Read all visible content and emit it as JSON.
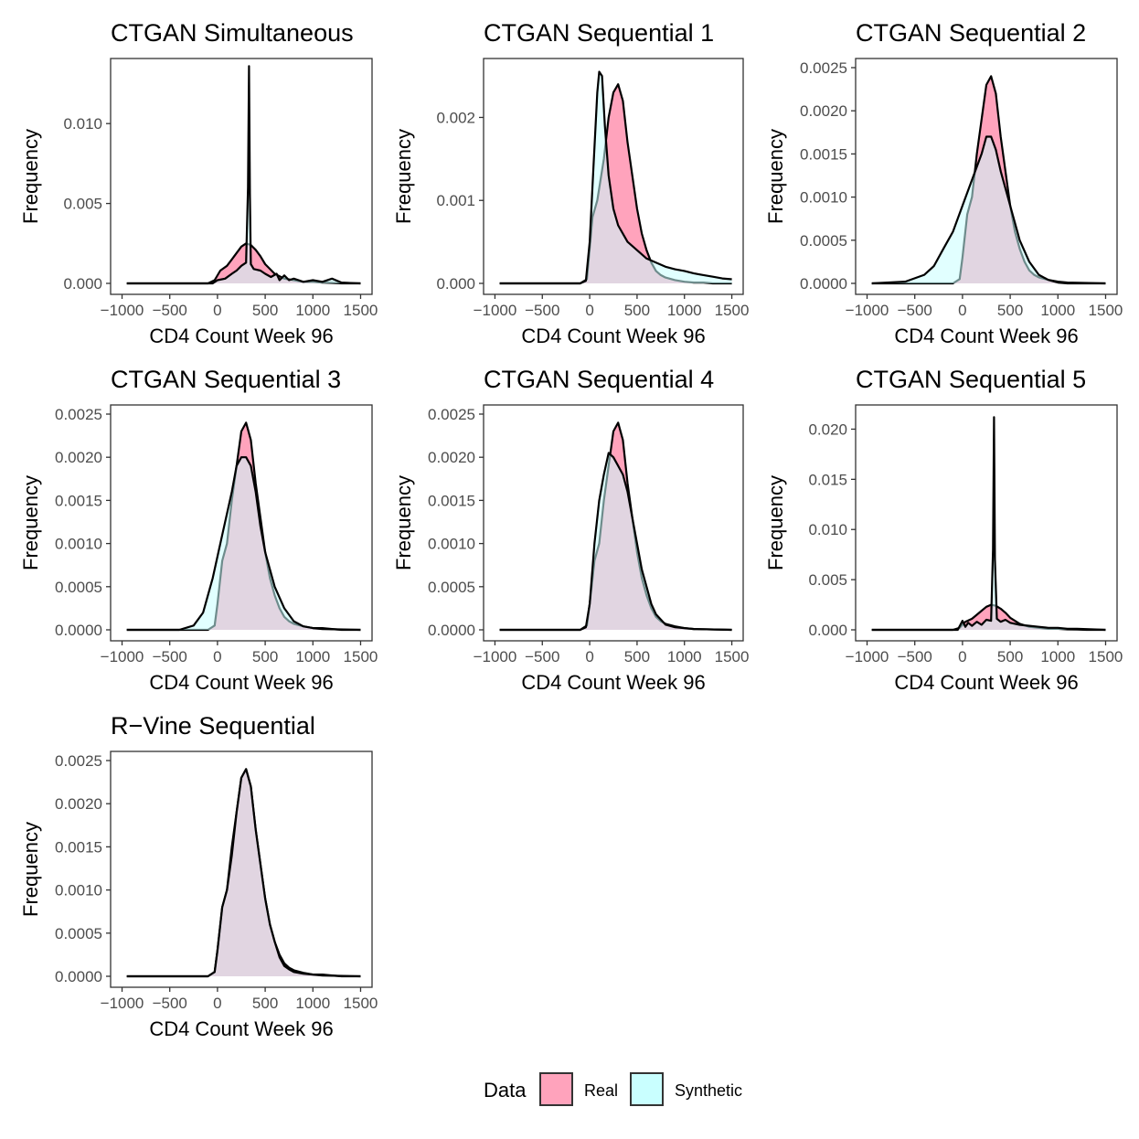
{
  "legend": {
    "title": "Data",
    "items": [
      {
        "label": "Real",
        "color": "#FFA3BC"
      },
      {
        "label": "Synthetic",
        "color": "#C9FFFF"
      }
    ]
  },
  "chart_data": [
    {
      "type": "area",
      "title": "CTGAN Simultaneous",
      "xlabel": "CD4 Count Week 96",
      "ylabel": "Frequency",
      "xlim": [
        -1000,
        1500
      ],
      "ylim": [
        0,
        0.0135
      ],
      "x_ticks": [
        "−1000",
        "−500",
        "0",
        "500",
        "1000",
        "1500"
      ],
      "y_ticks": [
        {
          "v": 0,
          "label": "0.000"
        },
        {
          "v": 0.005,
          "label": "0.005"
        },
        {
          "v": 0.01,
          "label": "0.010"
        }
      ],
      "series": [
        {
          "name": "Real",
          "x": [
            -950,
            -100,
            -30,
            30,
            100,
            150,
            200,
            250,
            300,
            350,
            400,
            450,
            500,
            600,
            700,
            800,
            900,
            1000,
            1100,
            1200,
            1300,
            1500
          ],
          "y": [
            0,
            0,
            0.0002,
            0.0008,
            0.0011,
            0.0015,
            0.0019,
            0.0023,
            0.0025,
            0.0024,
            0.0021,
            0.0017,
            0.0012,
            0.0006,
            0.0003,
            0.0002,
            0.0001,
            0.0001,
            5e-05,
            3e-05,
            0,
            0
          ]
        },
        {
          "name": "Synthetic",
          "x": [
            -950,
            -50,
            0,
            80,
            150,
            200,
            250,
            300,
            320,
            330,
            340,
            350,
            380,
            450,
            500,
            560,
            620,
            650,
            700,
            750,
            800,
            850,
            900,
            1000,
            1100,
            1200,
            1300,
            1500
          ],
          "y": [
            0,
            0,
            0.0002,
            0.0003,
            0.0006,
            0.0008,
            0.0011,
            0.0013,
            0.006,
            0.0136,
            0.0055,
            0.0012,
            0.0009,
            0.0008,
            0.0006,
            0.0004,
            0.0006,
            0.0002,
            0.0005,
            0.0002,
            0.0003,
            0.0002,
            0.0001,
            0.0002,
            0.0001,
            0.0003,
            5e-05,
            0
          ]
        }
      ]
    },
    {
      "type": "area",
      "title": "CTGAN Sequential 1",
      "xlabel": "CD4 Count Week 96",
      "ylabel": "Frequency",
      "xlim": [
        -1000,
        1500
      ],
      "ylim": [
        0,
        0.0026
      ],
      "x_ticks": [
        "−1000",
        "−500",
        "0",
        "500",
        "1000",
        "1500"
      ],
      "y_ticks": [
        {
          "v": 0,
          "label": "0.000"
        },
        {
          "v": 0.001,
          "label": "0.001"
        },
        {
          "v": 0.002,
          "label": "0.002"
        }
      ],
      "series": [
        {
          "name": "Real",
          "x": [
            -950,
            -100,
            -30,
            30,
            80,
            150,
            200,
            250,
            300,
            350,
            400,
            450,
            500,
            550,
            600,
            650,
            700,
            750,
            800,
            900,
            1000,
            1100,
            1200,
            1300,
            1500
          ],
          "y": [
            0,
            0,
            5e-05,
            0.0008,
            0.001,
            0.0015,
            0.002,
            0.0023,
            0.0024,
            0.0022,
            0.0017,
            0.0013,
            0.0009,
            0.0006,
            0.0004,
            0.00025,
            0.00015,
            0.0001,
            7e-05,
            4e-05,
            2e-05,
            1e-05,
            1e-05,
            0,
            0
          ]
        },
        {
          "name": "Synthetic",
          "x": [
            -950,
            -100,
            -40,
            0,
            40,
            80,
            100,
            130,
            160,
            200,
            250,
            300,
            400,
            500,
            600,
            700,
            800,
            900,
            1000,
            1100,
            1200,
            1300,
            1400,
            1500
          ],
          "y": [
            0,
            0,
            3e-05,
            0.0005,
            0.0014,
            0.0023,
            0.00255,
            0.0025,
            0.0019,
            0.0013,
            0.0009,
            0.0007,
            0.0005,
            0.0004,
            0.0003,
            0.00025,
            0.0002,
            0.00017,
            0.00015,
            0.00012,
            0.0001,
            8e-05,
            6e-05,
            5e-05
          ]
        }
      ]
    },
    {
      "type": "area",
      "title": "CTGAN Sequential 2",
      "xlabel": "CD4 Count Week 96",
      "ylabel": "Frequency",
      "xlim": [
        -1000,
        1500
      ],
      "ylim": [
        0,
        0.0025
      ],
      "x_ticks": [
        "−1000",
        "−500",
        "0",
        "500",
        "1000",
        "1500"
      ],
      "y_ticks": [
        {
          "v": 0,
          "label": "0.0000"
        },
        {
          "v": 0.0005,
          "label": "0.0005"
        },
        {
          "v": 0.001,
          "label": "0.0010"
        },
        {
          "v": 0.0015,
          "label": "0.0015"
        },
        {
          "v": 0.002,
          "label": "0.0020"
        },
        {
          "v": 0.0025,
          "label": "0.0025"
        }
      ],
      "series": [
        {
          "name": "Real",
          "x": [
            -950,
            -100,
            -30,
            0,
            50,
            100,
            150,
            200,
            250,
            300,
            350,
            400,
            450,
            500,
            550,
            600,
            650,
            700,
            750,
            800,
            900,
            1000,
            1100,
            1500
          ],
          "y": [
            0,
            0,
            5e-05,
            0.0003,
            0.0008,
            0.001,
            0.0015,
            0.0019,
            0.0023,
            0.0024,
            0.0022,
            0.0017,
            0.0013,
            0.0009,
            0.0006,
            0.0004,
            0.00025,
            0.00015,
            0.0001,
            7e-05,
            4e-05,
            2e-05,
            1e-05,
            0
          ]
        },
        {
          "name": "Synthetic",
          "x": [
            -950,
            -600,
            -400,
            -300,
            -200,
            -100,
            0,
            100,
            200,
            250,
            300,
            350,
            400,
            500,
            600,
            700,
            800,
            900,
            1000,
            1100,
            1500
          ],
          "y": [
            0,
            2e-05,
            0.0001,
            0.0002,
            0.0004,
            0.0006,
            0.0009,
            0.0012,
            0.0015,
            0.0017,
            0.0017,
            0.00155,
            0.0013,
            0.0009,
            0.0005,
            0.00025,
            0.0001,
            4e-05,
            1e-05,
            0,
            0
          ]
        }
      ]
    },
    {
      "type": "area",
      "title": "CTGAN Sequential 3",
      "xlabel": "CD4 Count Week 96",
      "ylabel": "Frequency",
      "xlim": [
        -1000,
        1500
      ],
      "ylim": [
        0,
        0.0025
      ],
      "x_ticks": [
        "−1000",
        "−500",
        "0",
        "500",
        "1000",
        "1500"
      ],
      "y_ticks": [
        {
          "v": 0,
          "label": "0.0000"
        },
        {
          "v": 0.0005,
          "label": "0.0005"
        },
        {
          "v": 0.001,
          "label": "0.0010"
        },
        {
          "v": 0.0015,
          "label": "0.0015"
        },
        {
          "v": 0.002,
          "label": "0.0020"
        },
        {
          "v": 0.0025,
          "label": "0.0025"
        }
      ],
      "series": [
        {
          "name": "Real",
          "x": [
            -950,
            -100,
            -30,
            0,
            50,
            100,
            150,
            200,
            250,
            300,
            350,
            400,
            450,
            500,
            550,
            600,
            650,
            700,
            750,
            800,
            900,
            1000,
            1100,
            1200,
            1300,
            1500
          ],
          "y": [
            0,
            0,
            5e-05,
            0.0003,
            0.0008,
            0.001,
            0.0015,
            0.0019,
            0.0023,
            0.0024,
            0.0022,
            0.0017,
            0.0013,
            0.0009,
            0.0006,
            0.0004,
            0.00025,
            0.00015,
            0.0001,
            7e-05,
            4e-05,
            2e-05,
            2e-05,
            1e-05,
            0,
            0
          ]
        },
        {
          "name": "Synthetic",
          "x": [
            -950,
            -400,
            -250,
            -150,
            -50,
            50,
            150,
            200,
            250,
            300,
            350,
            400,
            450,
            500,
            600,
            700,
            800,
            900,
            1000,
            1100,
            1500
          ],
          "y": [
            0,
            0,
            5e-05,
            0.0002,
            0.0006,
            0.0011,
            0.0016,
            0.0019,
            0.002,
            0.002,
            0.0019,
            0.0016,
            0.0012,
            0.0009,
            0.0005,
            0.00025,
            0.0001,
            4e-05,
            2e-05,
            1e-05,
            0
          ]
        }
      ]
    },
    {
      "type": "area",
      "title": "CTGAN Sequential 4",
      "xlabel": "CD4 Count Week 96",
      "ylabel": "Frequency",
      "xlim": [
        -1000,
        1500
      ],
      "ylim": [
        0,
        0.0025
      ],
      "x_ticks": [
        "−1000",
        "−500",
        "0",
        "500",
        "1000",
        "1500"
      ],
      "y_ticks": [
        {
          "v": 0,
          "label": "0.0000"
        },
        {
          "v": 0.0005,
          "label": "0.0005"
        },
        {
          "v": 0.001,
          "label": "0.0010"
        },
        {
          "v": 0.0015,
          "label": "0.0015"
        },
        {
          "v": 0.002,
          "label": "0.0020"
        },
        {
          "v": 0.0025,
          "label": "0.0025"
        }
      ],
      "series": [
        {
          "name": "Real",
          "x": [
            -950,
            -100,
            -30,
            0,
            50,
            100,
            150,
            200,
            250,
            300,
            350,
            400,
            450,
            500,
            550,
            600,
            650,
            700,
            750,
            800,
            900,
            1000,
            1100,
            1500
          ],
          "y": [
            0,
            0,
            5e-05,
            0.0003,
            0.0008,
            0.001,
            0.0015,
            0.0019,
            0.0023,
            0.0024,
            0.0022,
            0.0017,
            0.0013,
            0.0009,
            0.0006,
            0.0004,
            0.00025,
            0.00015,
            0.0001,
            7e-05,
            4e-05,
            2e-05,
            1e-05,
            0
          ]
        },
        {
          "name": "Synthetic",
          "x": [
            -950,
            -100,
            -40,
            0,
            50,
            100,
            150,
            200,
            250,
            300,
            350,
            400,
            450,
            500,
            550,
            600,
            650,
            700,
            800,
            900,
            1000,
            1100,
            1500
          ],
          "y": [
            0,
            0,
            3e-05,
            0.0003,
            0.001,
            0.0015,
            0.0018,
            0.00205,
            0.002,
            0.0019,
            0.0018,
            0.0016,
            0.0013,
            0.001,
            0.0007,
            0.0005,
            0.0003,
            0.00018,
            6e-05,
            3e-05,
            2e-05,
            1e-05,
            0
          ]
        }
      ]
    },
    {
      "type": "area",
      "title": "CTGAN Sequential 5",
      "xlabel": "CD4 Count Week 96",
      "ylabel": "Frequency",
      "xlim": [
        -1000,
        1500
      ],
      "ylim": [
        0,
        0.0215
      ],
      "x_ticks": [
        "−1000",
        "−500",
        "0",
        "500",
        "1000",
        "1500"
      ],
      "y_ticks": [
        {
          "v": 0,
          "label": "0.000"
        },
        {
          "v": 0.005,
          "label": "0.005"
        },
        {
          "v": 0.01,
          "label": "0.010"
        },
        {
          "v": 0.015,
          "label": "0.015"
        },
        {
          "v": 0.02,
          "label": "0.020"
        }
      ],
      "series": [
        {
          "name": "Real",
          "x": [
            -950,
            -100,
            -30,
            30,
            100,
            150,
            200,
            250,
            300,
            350,
            400,
            450,
            500,
            600,
            700,
            800,
            900,
            1000,
            1100,
            1200,
            1300,
            1500
          ],
          "y": [
            0,
            0,
            0.0002,
            0.0008,
            0.0011,
            0.0015,
            0.0019,
            0.0023,
            0.0025,
            0.0024,
            0.0021,
            0.0017,
            0.0012,
            0.0006,
            0.0003,
            0.0002,
            0.0001,
            0.0001,
            5e-05,
            3e-05,
            0,
            0
          ]
        },
        {
          "name": "Synthetic",
          "x": [
            -950,
            -50,
            0,
            30,
            60,
            100,
            150,
            200,
            250,
            300,
            320,
            330,
            340,
            360,
            400,
            450,
            500,
            600,
            700,
            800,
            900,
            1000,
            1100,
            1200,
            1500
          ],
          "y": [
            0,
            0,
            0.0009,
            0.0003,
            0.0007,
            0.0004,
            0.0008,
            0.0005,
            0.001,
            0.0009,
            0.008,
            0.0212,
            0.007,
            0.0011,
            0.0008,
            0.001,
            0.0007,
            0.0005,
            0.0004,
            0.0003,
            0.0002,
            0.0002,
            0.0001,
            0.0001,
            0
          ]
        }
      ]
    },
    {
      "type": "area",
      "title": "R−Vine Sequential",
      "xlabel": "CD4 Count Week 96",
      "ylabel": "Frequency",
      "xlim": [
        -1000,
        1500
      ],
      "ylim": [
        0,
        0.0025
      ],
      "x_ticks": [
        "−1000",
        "−500",
        "0",
        "500",
        "1000",
        "1500"
      ],
      "y_ticks": [
        {
          "v": 0,
          "label": "0.0000"
        },
        {
          "v": 0.0005,
          "label": "0.0005"
        },
        {
          "v": 0.001,
          "label": "0.0010"
        },
        {
          "v": 0.0015,
          "label": "0.0015"
        },
        {
          "v": 0.002,
          "label": "0.0020"
        },
        {
          "v": 0.0025,
          "label": "0.0025"
        }
      ],
      "series": [
        {
          "name": "Real",
          "x": [
            -950,
            -100,
            -30,
            0,
            50,
            100,
            150,
            200,
            250,
            300,
            350,
            400,
            450,
            500,
            550,
            600,
            650,
            700,
            750,
            800,
            900,
            1000,
            1100,
            1200,
            1300,
            1500
          ],
          "y": [
            0,
            0,
            5e-05,
            0.0003,
            0.0008,
            0.001,
            0.0015,
            0.0019,
            0.0023,
            0.0024,
            0.0022,
            0.0017,
            0.0013,
            0.0009,
            0.0006,
            0.0004,
            0.00025,
            0.00015,
            0.0001,
            7e-05,
            4e-05,
            2e-05,
            2e-05,
            1e-05,
            0,
            0
          ]
        },
        {
          "name": "Synthetic",
          "x": [
            -950,
            -100,
            -30,
            0,
            50,
            100,
            150,
            200,
            250,
            300,
            350,
            400,
            450,
            500,
            550,
            600,
            650,
            700,
            750,
            800,
            900,
            1000,
            1100,
            1500
          ],
          "y": [
            0,
            0,
            5e-05,
            0.0003,
            0.0008,
            0.001,
            0.0014,
            0.0019,
            0.0023,
            0.0024,
            0.0022,
            0.0017,
            0.0013,
            0.0009,
            0.0006,
            0.0004,
            0.00022,
            0.00012,
            8e-05,
            5e-05,
            3e-05,
            2e-05,
            1e-05,
            0
          ]
        }
      ]
    }
  ]
}
